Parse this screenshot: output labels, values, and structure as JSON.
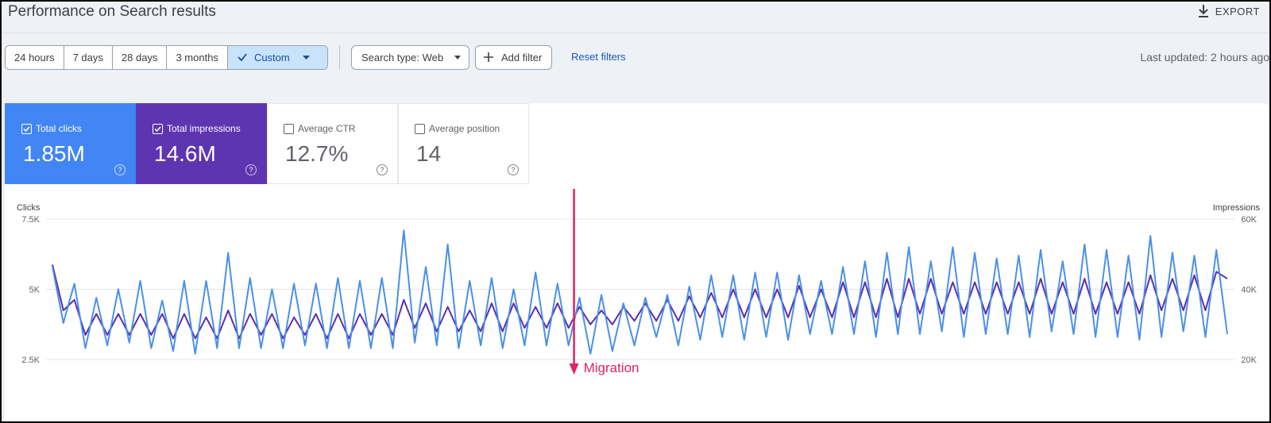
{
  "header": {
    "title": "Performance on Search results",
    "export": "EXPORT"
  },
  "toolbar": {
    "ranges": [
      "24 hours",
      "7 days",
      "28 days",
      "3 months",
      "Custom"
    ],
    "selected": 4,
    "search_type": "Search type: Web",
    "add_filter": "Add filter",
    "reset": "Reset filters",
    "last_updated": "Last updated: 2 hours ago"
  },
  "metrics": [
    {
      "label": "Total clicks",
      "value": "1.85M",
      "checked": true,
      "color": "#4285f4"
    },
    {
      "label": "Total impressions",
      "value": "14.6M",
      "checked": true,
      "color": "#5e35b1"
    },
    {
      "label": "Average CTR",
      "value": "12.7%",
      "checked": false,
      "color": "#ffffff"
    },
    {
      "label": "Average position",
      "value": "14",
      "checked": false,
      "color": "#ffffff"
    }
  ],
  "chart_data": {
    "type": "line",
    "ylim": [
      2500,
      7500
    ],
    "yticks": [
      {
        "value": 2500,
        "label": "2.5K"
      },
      {
        "value": 5000,
        "label": "5K"
      },
      {
        "value": 7500,
        "label": "7.5K"
      }
    ],
    "y2lim": [
      20000,
      60000
    ],
    "y2ticks": [
      {
        "value": 20000,
        "label": "20K"
      },
      {
        "value": 40000,
        "label": "40K"
      },
      {
        "value": 60000,
        "label": "60K"
      }
    ],
    "grid": true,
    "series": [
      {
        "name": "Clicks",
        "color": "#4a90e8",
        "values": [
          5800,
          3800,
          5200,
          2900,
          4700,
          3000,
          5000,
          3100,
          5300,
          2900,
          4600,
          2800,
          5300,
          2700,
          5300,
          2900,
          6300,
          2900,
          5400,
          2900,
          5000,
          2900,
          5200,
          3000,
          5200,
          2900,
          5400,
          2900,
          5300,
          2900,
          5400,
          2900,
          7100,
          3100,
          5800,
          3000,
          6600,
          2900,
          5300,
          3000,
          5400,
          2900,
          5000,
          3000,
          5600,
          3000,
          5200,
          3000,
          4700,
          2700,
          4800,
          2800,
          4500,
          3000,
          4700,
          3300,
          4800,
          3000,
          5100,
          3200,
          5500,
          3300,
          5500,
          3200,
          5600,
          3300,
          5600,
          3200,
          5500,
          3400,
          5300,
          3400,
          5800,
          3400,
          6000,
          3300,
          6300,
          3400,
          6500,
          3400,
          6000,
          3500,
          6500,
          3300,
          6300,
          3400,
          6100,
          3400,
          6200,
          3300,
          6400,
          3500,
          6000,
          3400,
          6600,
          3300,
          6400,
          3300,
          6200,
          3200,
          6900,
          3300,
          6300,
          3500,
          6200,
          3300,
          6400,
          3400
        ]
      },
      {
        "name": "Impressions",
        "color": "#5b2fb0",
        "axis": "y2",
        "values": [
          47000,
          34000,
          37000,
          27000,
          33000,
          27000,
          33000,
          27000,
          33000,
          27000,
          33000,
          26000,
          33000,
          26000,
          32000,
          26000,
          34000,
          26000,
          33000,
          27000,
          33000,
          26000,
          32000,
          27000,
          33000,
          26000,
          33000,
          26000,
          33000,
          27000,
          33000,
          27000,
          37000,
          29000,
          36000,
          28000,
          35000,
          28000,
          34000,
          28000,
          36000,
          28000,
          36000,
          29000,
          35000,
          29000,
          36000,
          29000,
          35000,
          30000,
          34000,
          30000,
          35000,
          31000,
          36000,
          31000,
          37000,
          31000,
          38000,
          32000,
          39000,
          32000,
          40000,
          32000,
          40000,
          32000,
          40000,
          32000,
          41000,
          32000,
          40000,
          32000,
          42000,
          32000,
          42000,
          32000,
          43000,
          32000,
          43000,
          33000,
          43000,
          33000,
          42000,
          33000,
          42000,
          33000,
          42000,
          33000,
          42000,
          33000,
          43000,
          33000,
          42000,
          33000,
          43000,
          33000,
          42000,
          33000,
          42000,
          33000,
          44000,
          34000,
          43000,
          34000,
          44000,
          34000,
          45000,
          43000
        ]
      }
    ],
    "annotations": [
      {
        "text": "Migration",
        "x": 47.5,
        "color": "#e0245e"
      }
    ]
  }
}
